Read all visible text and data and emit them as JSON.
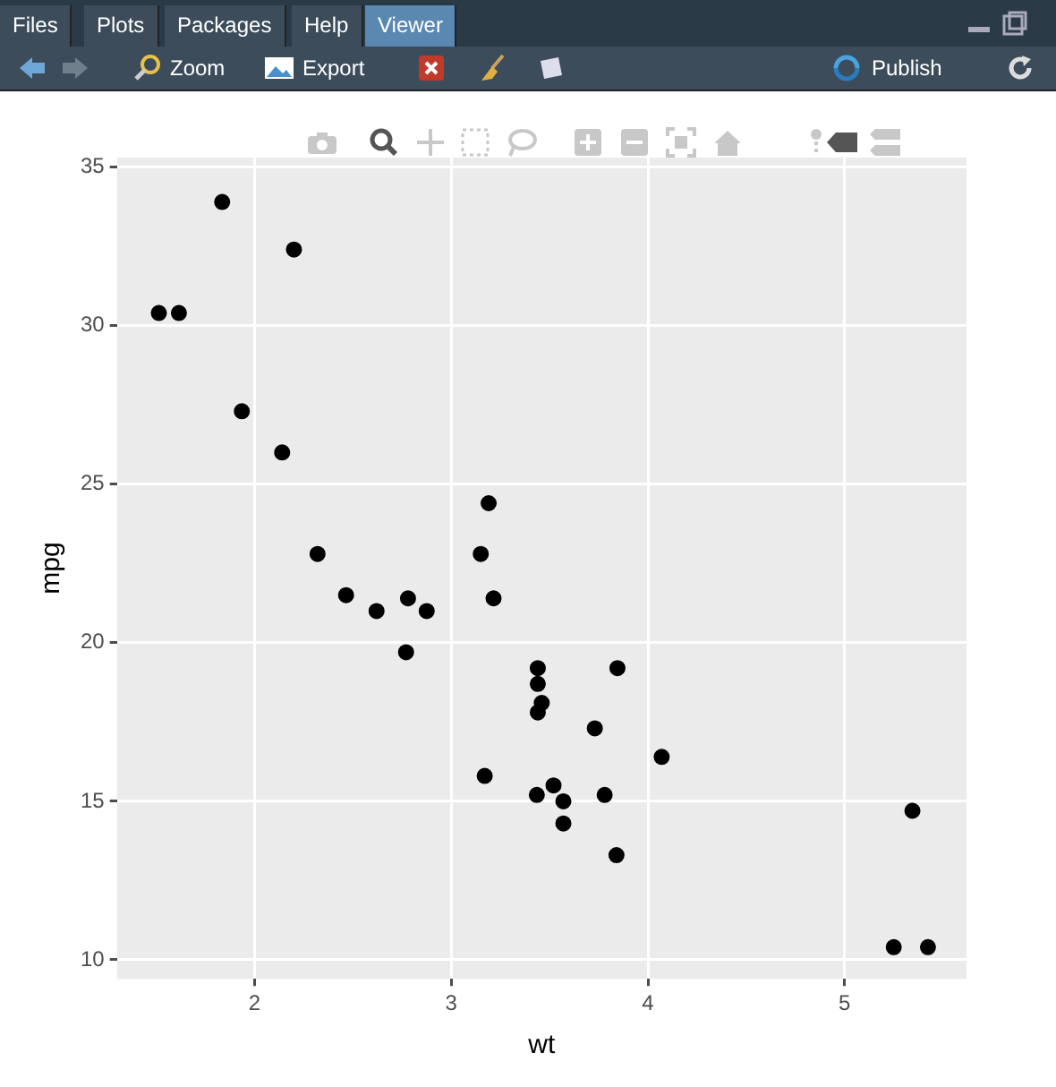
{
  "chart_data": {
    "type": "scatter",
    "xlabel": "wt",
    "ylabel": "mpg",
    "x": [
      2.62,
      2.875,
      2.32,
      3.215,
      3.44,
      3.46,
      3.57,
      3.19,
      3.15,
      3.44,
      3.44,
      4.07,
      3.73,
      3.78,
      5.25,
      5.424,
      5.345,
      2.2,
      1.615,
      1.835,
      2.465,
      3.52,
      3.435,
      3.84,
      3.845,
      1.935,
      2.14,
      1.513,
      3.17,
      2.77,
      3.57,
      2.78
    ],
    "series": [
      {
        "color": "#000000",
        "values": [
          21.0,
          21.0,
          22.8,
          21.4,
          18.7,
          18.1,
          14.3,
          24.4,
          22.8,
          19.2,
          17.8,
          16.4,
          17.3,
          15.2,
          10.4,
          10.4,
          14.7,
          32.4,
          30.4,
          33.9,
          21.5,
          15.5,
          15.2,
          13.3,
          19.2,
          27.3,
          26.0,
          30.4,
          15.8,
          19.7,
          15.0,
          21.4
        ]
      }
    ],
    "xlim": [
      1.3,
      5.62
    ],
    "xticks": [
      2,
      3,
      4,
      5
    ],
    "ylim": [
      9.4,
      35.3
    ],
    "yticks": [
      10,
      15,
      20,
      25,
      30,
      35
    ],
    "grid": true,
    "marker": "circle",
    "legend": false,
    "annotations": [
      "Files",
      "Plots",
      "Packages",
      "Help",
      "Viewer",
      "Zoom",
      "Export",
      "Publish"
    ]
  }
}
